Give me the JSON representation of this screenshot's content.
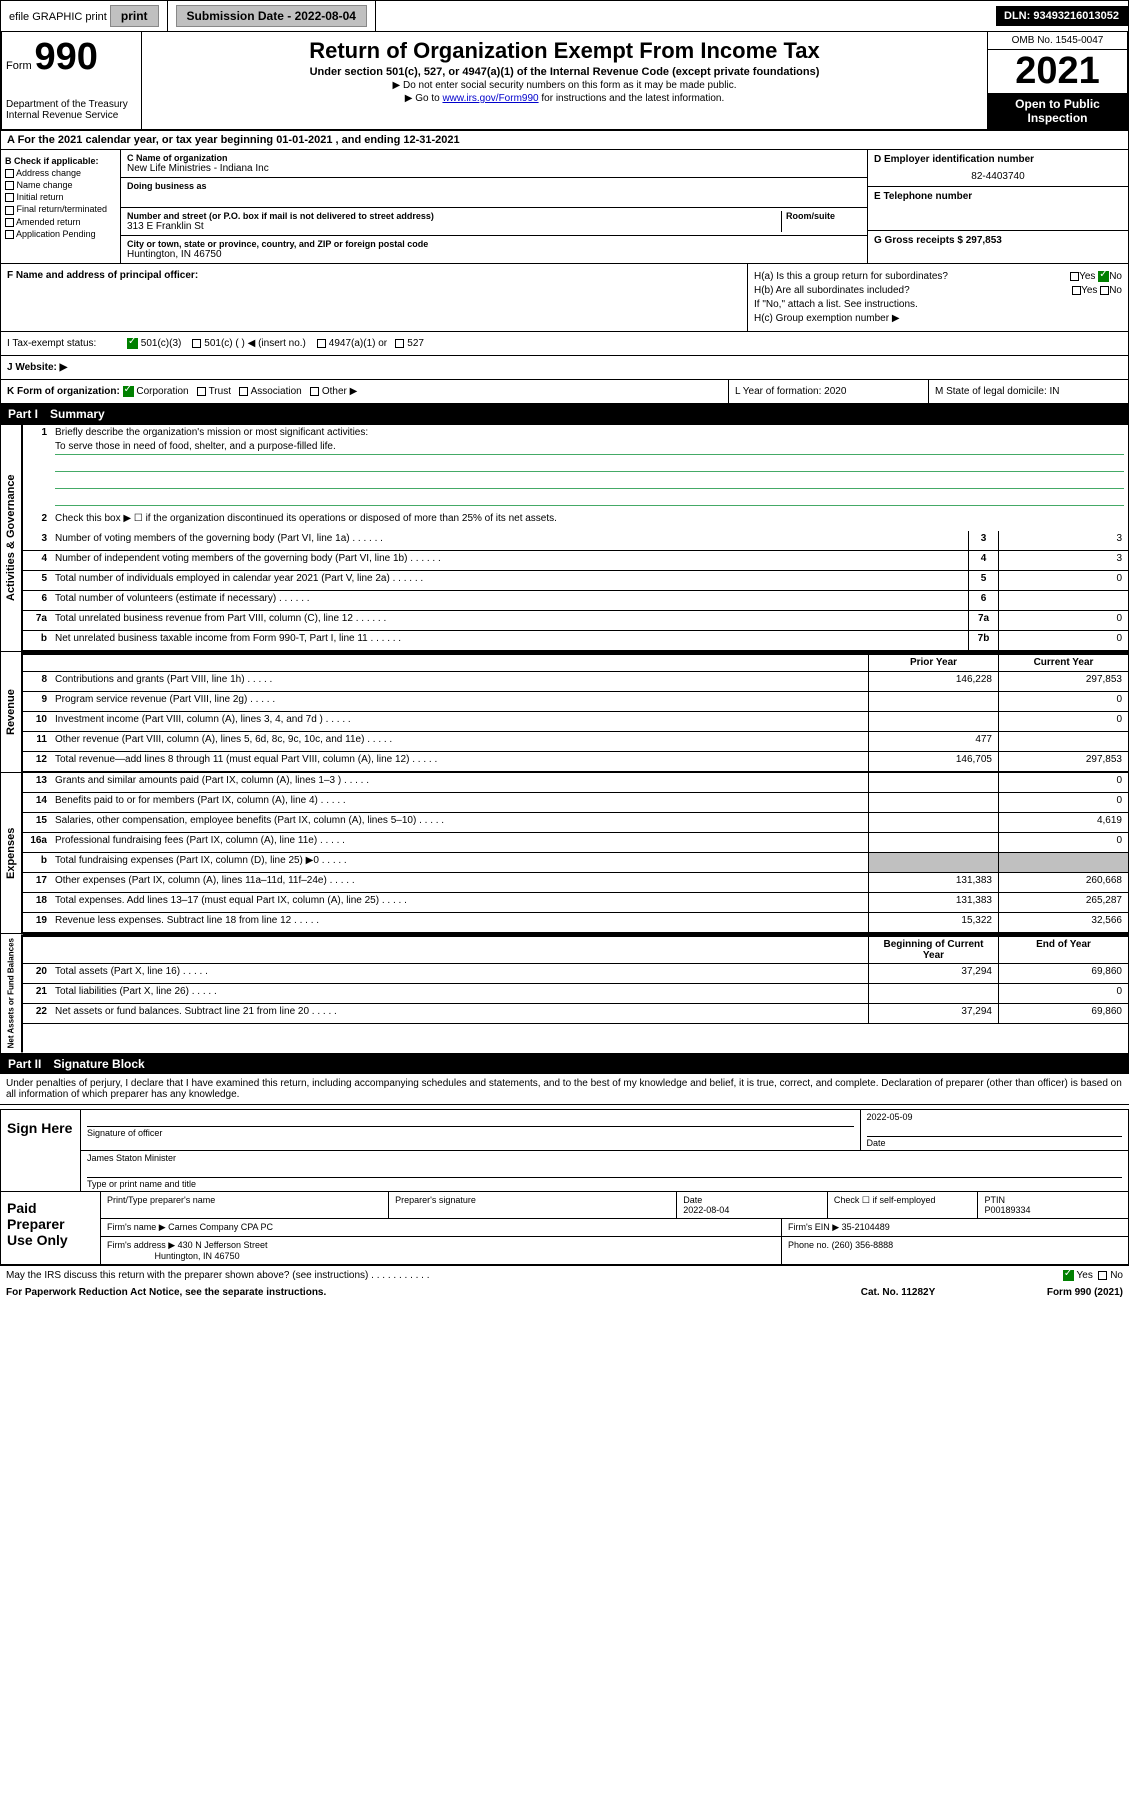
{
  "top": {
    "efile": "efile GRAPHIC print",
    "submission_label": "Submission Date - 2022-08-04",
    "dln": "DLN: 93493216013052"
  },
  "header": {
    "form_prefix": "Form",
    "form_num": "990",
    "dept1": "Department of the Treasury",
    "dept2": "Internal Revenue Service",
    "title": "Return of Organization Exempt From Income Tax",
    "sub": "Under section 501(c), 527, or 4947(a)(1) of the Internal Revenue Code (except private foundations)",
    "note1": "▶ Do not enter social security numbers on this form as it may be made public.",
    "note2_pre": "▶ Go to ",
    "note2_link": "www.irs.gov/Form990",
    "note2_post": " for instructions and the latest information.",
    "omb": "OMB No. 1545-0047",
    "year": "2021",
    "open": "Open to Public Inspection"
  },
  "row_a": "A For the 2021 calendar year, or tax year beginning 01-01-2021  , and ending 12-31-2021",
  "col_b": {
    "label": "B Check if applicable:",
    "items": [
      "Address change",
      "Name change",
      "Initial return",
      "Final return/terminated",
      "Amended return",
      "Application Pending"
    ]
  },
  "col_c": {
    "name_label": "C Name of organization",
    "name": "New Life Ministries - Indiana Inc",
    "dba_label": "Doing business as",
    "addr_label": "Number and street (or P.O. box if mail is not delivered to street address)",
    "room_label": "Room/suite",
    "addr": "313 E Franklin St",
    "city_label": "City or town, state or province, country, and ZIP or foreign postal code",
    "city": "Huntington, IN  46750"
  },
  "col_de": {
    "d_label": "D Employer identification number",
    "d_val": "82-4403740",
    "e_label": "E Telephone number",
    "g_label": "G Gross receipts $ 297,853"
  },
  "section_f": {
    "f_label": "F  Name and address of principal officer:",
    "ha": "H(a)  Is this a group return for subordinates?",
    "hb": "H(b)  Are all subordinates included?",
    "hb_note": "If \"No,\" attach a list. See instructions.",
    "hc": "H(c)  Group exemption number ▶",
    "yes": "Yes",
    "no": "No"
  },
  "tax_status": {
    "i_label": "I   Tax-exempt status:",
    "opt1": "501(c)(3)",
    "opt2": "501(c) (   ) ◀ (insert no.)",
    "opt3": "4947(a)(1) or",
    "opt4": "527"
  },
  "website": "J   Website: ▶",
  "klm": {
    "k": "K Form of organization:",
    "k_opts": [
      "Corporation",
      "Trust",
      "Association",
      "Other ▶"
    ],
    "l": "L Year of formation: 2020",
    "m": "M State of legal domicile: IN"
  },
  "part1": {
    "header": "Part I",
    "title": "Summary",
    "q1": "Briefly describe the organization's mission or most significant activities:",
    "q1_val": "To serve those in need of food, shelter, and a purpose-filled life.",
    "q2": "Check this box ▶ ☐  if the organization discontinued its operations or disposed of more than 25% of its net assets.",
    "rows_gov": [
      {
        "n": "3",
        "d": "Number of voting members of the governing body (Part VI, line 1a)",
        "box": "3",
        "v": "3"
      },
      {
        "n": "4",
        "d": "Number of independent voting members of the governing body (Part VI, line 1b)",
        "box": "4",
        "v": "3"
      },
      {
        "n": "5",
        "d": "Total number of individuals employed in calendar year 2021 (Part V, line 2a)",
        "box": "5",
        "v": "0"
      },
      {
        "n": "6",
        "d": "Total number of volunteers (estimate if necessary)",
        "box": "6",
        "v": ""
      },
      {
        "n": "7a",
        "d": "Total unrelated business revenue from Part VIII, column (C), line 12",
        "box": "7a",
        "v": "0"
      },
      {
        "n": "b",
        "d": "Net unrelated business taxable income from Form 990-T, Part I, line 11",
        "box": "7b",
        "v": "0"
      }
    ],
    "col_headers": {
      "prior": "Prior Year",
      "current": "Current Year"
    },
    "rows_rev": [
      {
        "n": "8",
        "d": "Contributions and grants (Part VIII, line 1h)",
        "p": "146,228",
        "c": "297,853"
      },
      {
        "n": "9",
        "d": "Program service revenue (Part VIII, line 2g)",
        "p": "",
        "c": "0"
      },
      {
        "n": "10",
        "d": "Investment income (Part VIII, column (A), lines 3, 4, and 7d )",
        "p": "",
        "c": "0"
      },
      {
        "n": "11",
        "d": "Other revenue (Part VIII, column (A), lines 5, 6d, 8c, 9c, 10c, and 11e)",
        "p": "477",
        "c": ""
      },
      {
        "n": "12",
        "d": "Total revenue—add lines 8 through 11 (must equal Part VIII, column (A), line 12)",
        "p": "146,705",
        "c": "297,853"
      }
    ],
    "rows_exp": [
      {
        "n": "13",
        "d": "Grants and similar amounts paid (Part IX, column (A), lines 1–3 )",
        "p": "",
        "c": "0"
      },
      {
        "n": "14",
        "d": "Benefits paid to or for members (Part IX, column (A), line 4)",
        "p": "",
        "c": "0"
      },
      {
        "n": "15",
        "d": "Salaries, other compensation, employee benefits (Part IX, column (A), lines 5–10)",
        "p": "",
        "c": "4,619"
      },
      {
        "n": "16a",
        "d": "Professional fundraising fees (Part IX, column (A), line 11e)",
        "p": "",
        "c": "0"
      },
      {
        "n": "b",
        "d": "Total fundraising expenses (Part IX, column (D), line 25) ▶0",
        "p": "gray",
        "c": "gray"
      },
      {
        "n": "17",
        "d": "Other expenses (Part IX, column (A), lines 11a–11d, 11f–24e)",
        "p": "131,383",
        "c": "260,668"
      },
      {
        "n": "18",
        "d": "Total expenses. Add lines 13–17 (must equal Part IX, column (A), line 25)",
        "p": "131,383",
        "c": "265,287"
      },
      {
        "n": "19",
        "d": "Revenue less expenses. Subtract line 18 from line 12",
        "p": "15,322",
        "c": "32,566"
      }
    ],
    "col_headers2": {
      "prior": "Beginning of Current Year",
      "current": "End of Year"
    },
    "rows_net": [
      {
        "n": "20",
        "d": "Total assets (Part X, line 16)",
        "p": "37,294",
        "c": "69,860"
      },
      {
        "n": "21",
        "d": "Total liabilities (Part X, line 26)",
        "p": "",
        "c": "0"
      },
      {
        "n": "22",
        "d": "Net assets or fund balances. Subtract line 21 from line 20",
        "p": "37,294",
        "c": "69,860"
      }
    ]
  },
  "side_labels": {
    "gov": "Activities & Governance",
    "rev": "Revenue",
    "exp": "Expenses",
    "net": "Net Assets or Fund Balances"
  },
  "part2": {
    "header": "Part II",
    "title": "Signature Block",
    "declare": "Under penalties of perjury, I declare that I have examined this return, including accompanying schedules and statements, and to the best of my knowledge and belief, it is true, correct, and complete. Declaration of preparer (other than officer) is based on all information of which preparer has any knowledge.",
    "sign_here": "Sign Here",
    "sig_officer": "Signature of officer",
    "sig_date": "2022-05-09",
    "date_label": "Date",
    "name_title": "James Staton  Minister",
    "type_label": "Type or print name and title",
    "paid_prep": "Paid Preparer Use Only",
    "prep_name_label": "Print/Type preparer's name",
    "prep_sig_label": "Preparer's signature",
    "prep_date_label": "Date",
    "prep_date": "2022-08-04",
    "self_emp": "Check ☐ if self-employed",
    "ptin_label": "PTIN",
    "ptin": "P00189334",
    "firm_name_label": "Firm's name    ▶",
    "firm_name": "Carnes Company CPA PC",
    "firm_ein_label": "Firm's EIN ▶",
    "firm_ein": "35-2104489",
    "firm_addr_label": "Firm's address ▶",
    "firm_addr1": "430 N Jefferson Street",
    "firm_addr2": "Huntington, IN  46750",
    "phone_label": "Phone no.",
    "phone": "(260) 356-8888"
  },
  "footer": {
    "discuss": "May the IRS discuss this return with the preparer shown above? (see instructions)",
    "yes": "Yes",
    "no": "No",
    "paperwork": "For Paperwork Reduction Act Notice, see the separate instructions.",
    "cat": "Cat. No. 11282Y",
    "form": "Form 990 (2021)"
  }
}
